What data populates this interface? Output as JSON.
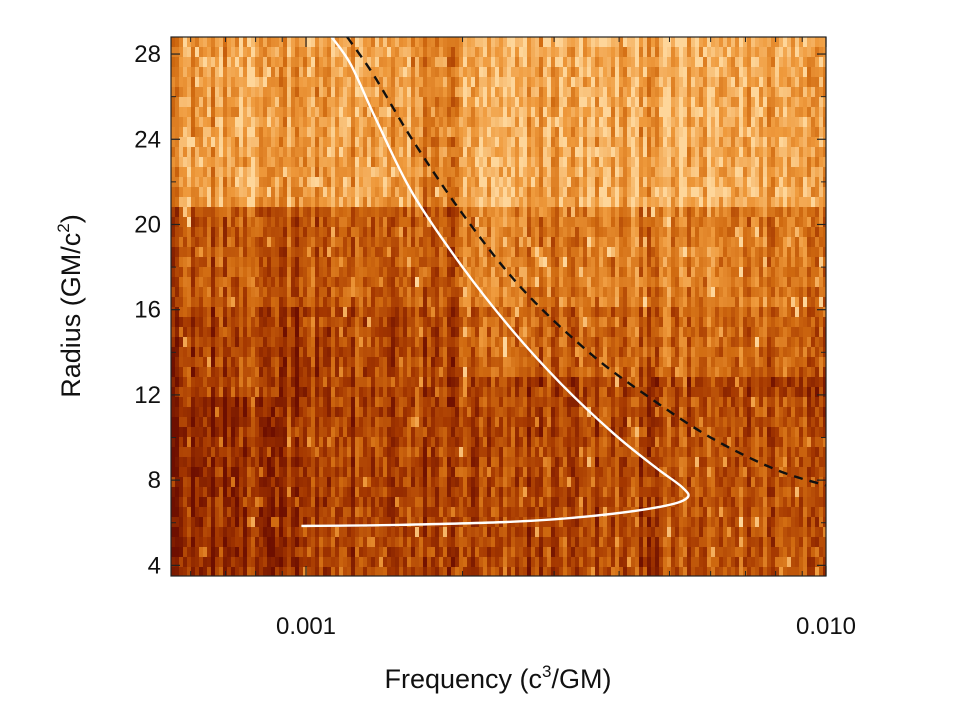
{
  "chart_data": {
    "type": "heatmap",
    "title": "",
    "xlabel": {
      "base": "Frequency (c",
      "sup": "3",
      "tail": "/GM)"
    },
    "ylabel": {
      "base": "Radius (GM/c",
      "sup": "2",
      "tail": ")"
    },
    "x_scale": "log",
    "xlim": [
      0.00055,
      0.01
    ],
    "ylim": [
      3.5,
      28.8
    ],
    "x_ticks": [
      {
        "value": 0.001,
        "label": "0.001"
      },
      {
        "value": 0.01,
        "label": "0.010"
      }
    ],
    "y_ticks": [
      {
        "value": 4,
        "label": "4"
      },
      {
        "value": 8,
        "label": "8"
      },
      {
        "value": 12,
        "label": "12"
      },
      {
        "value": 16,
        "label": "16"
      },
      {
        "value": 20,
        "label": "20"
      },
      {
        "value": 24,
        "label": "24"
      },
      {
        "value": 28,
        "label": "28"
      }
    ],
    "colormap": [
      "#6e0f00",
      "#a43700",
      "#d06a10",
      "#ef9a3c",
      "#fed69a"
    ],
    "grid": false,
    "legend": "none",
    "series": [
      {
        "style": "solid",
        "color": "#ffffff",
        "points": [
          [
            0.00098,
            5.85
          ],
          [
            0.0015,
            5.9
          ],
          [
            0.0025,
            6.05
          ],
          [
            0.0035,
            6.3
          ],
          [
            0.0048,
            6.75
          ],
          [
            0.0054,
            7.15
          ],
          [
            0.0053,
            7.65
          ],
          [
            0.0047,
            8.6
          ],
          [
            0.0039,
            10.2
          ],
          [
            0.0031,
            12.5
          ],
          [
            0.0025,
            15.0
          ],
          [
            0.002,
            18.0
          ],
          [
            0.0016,
            21.5
          ],
          [
            0.00136,
            25.0
          ],
          [
            0.00122,
            27.5
          ],
          [
            0.00112,
            28.8
          ]
        ]
      },
      {
        "style": "dashed",
        "color": "#111111",
        "points": [
          [
            0.0012,
            28.8
          ],
          [
            0.00135,
            27.0
          ],
          [
            0.0016,
            24.0
          ],
          [
            0.002,
            20.5
          ],
          [
            0.0026,
            17.0
          ],
          [
            0.0035,
            14.0
          ],
          [
            0.0045,
            12.0
          ],
          [
            0.006,
            10.0
          ],
          [
            0.008,
            8.5
          ],
          [
            0.01,
            7.75
          ]
        ]
      }
    ]
  }
}
